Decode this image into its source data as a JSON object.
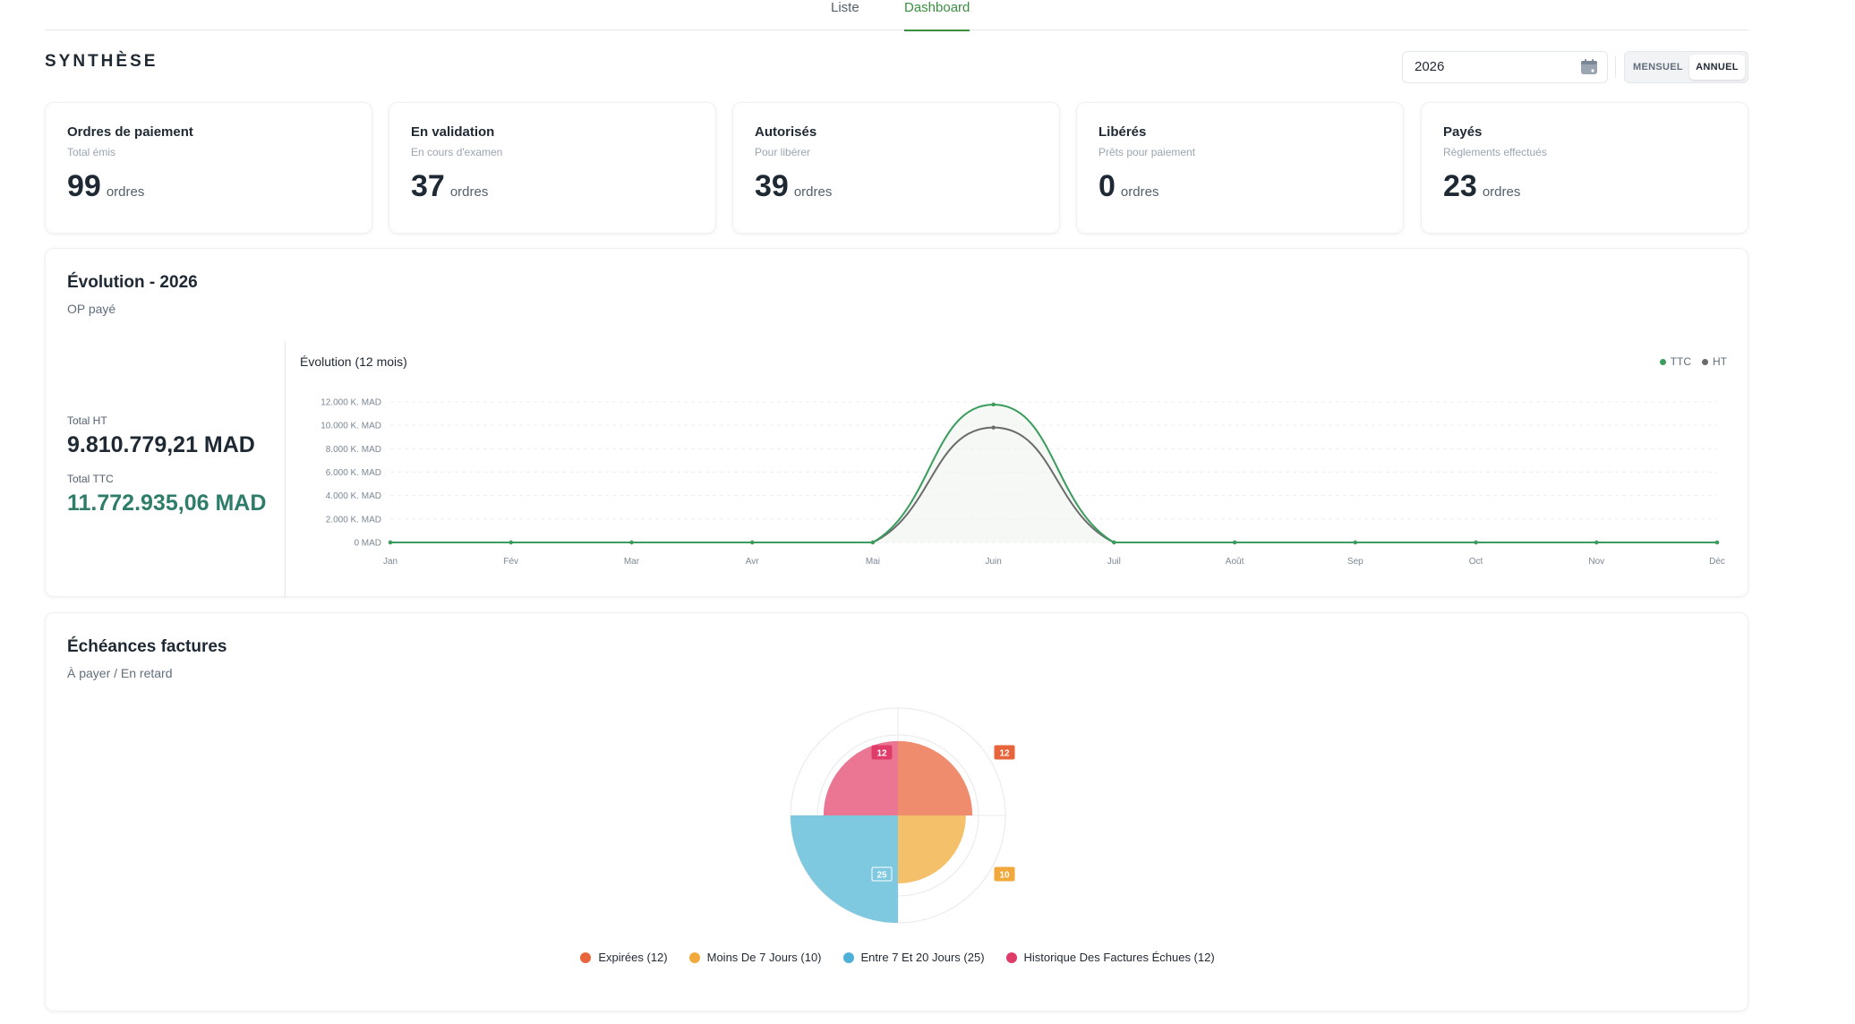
{
  "tabs": [
    {
      "label": "Liste"
    },
    {
      "label": "Dashboard"
    }
  ],
  "header": {
    "title": "SYNTHÈSE",
    "year_value": "2026",
    "period_options": [
      "MENSUEL",
      "ANNUEL"
    ],
    "active_period": "ANNUEL"
  },
  "cards": [
    {
      "title": "Ordres de paiement",
      "sub": "Total émis",
      "value": "99",
      "unit": "ordres"
    },
    {
      "title": "En validation",
      "sub": "En cours d'examen",
      "value": "37",
      "unit": "ordres"
    },
    {
      "title": "Autorisés",
      "sub": "Pour libérer",
      "value": "39",
      "unit": "ordres"
    },
    {
      "title": "Libérés",
      "sub": "Prêts pour paiement",
      "value": "0",
      "unit": "ordres"
    },
    {
      "title": "Payés",
      "sub": "Règlements effectués",
      "value": "23",
      "unit": "ordres"
    }
  ],
  "evolution": {
    "title": "Évolution - 2026",
    "subtitle": "OP payé",
    "total_ht_label": "Total HT",
    "total_ht": "9.810.779,21 MAD",
    "total_ttc_label": "Total TTC",
    "total_ttc": "11.772.935,06 MAD",
    "chart_title": "Évolution (12 mois)"
  },
  "echeances": {
    "title": "Échéances factures",
    "subtitle": "À payer / En retard"
  },
  "chart_data": [
    {
      "type": "line",
      "title": "Évolution (12 mois)",
      "categories": [
        "Jan",
        "Fév",
        "Mar",
        "Avr",
        "Mai",
        "Juin",
        "Juil",
        "Août",
        "Sep",
        "Oct",
        "Nov",
        "Déc"
      ],
      "y_ticks": [
        "0 MAD",
        "2.000 K. MAD",
        "4.000 K. MAD",
        "6.000 K. MAD",
        "8.000 K. MAD",
        "10.000 K. MAD",
        "12.000 K. MAD"
      ],
      "ylim": [
        0,
        12000
      ],
      "grid": true,
      "legend_position": "top-right",
      "series": [
        {
          "name": "TTC",
          "color": "#3a9d5d",
          "values": [
            0,
            0,
            0,
            0,
            0,
            11773,
            0,
            0,
            0,
            0,
            0,
            0
          ]
        },
        {
          "name": "HT",
          "color": "#6b6b6b",
          "values": [
            0,
            0,
            0,
            0,
            0,
            9811,
            0,
            0,
            0,
            0,
            0,
            0
          ]
        }
      ]
    },
    {
      "type": "pie",
      "subtype": "polar-area",
      "legend_position": "bottom",
      "categories": [
        "Expirées (12)",
        "Moins De 7 Jours (10)",
        "Entre 7 Et 20 Jours (25)",
        "Historique Des Factures Échues (12)"
      ],
      "values": [
        12,
        10,
        25,
        12
      ],
      "labels": [
        "12",
        "10",
        "25",
        "12"
      ],
      "colors": [
        "#f08c6e",
        "#f5c06a",
        "#7ec8e0",
        "#ea7693"
      ],
      "legend_colors": [
        "#e8643a",
        "#f2a93b",
        "#4fb0d8",
        "#e03c6a"
      ],
      "label_colors": [
        "#e8643a",
        "#f2a93b",
        "#4fb0d8",
        "#e03c6a"
      ]
    }
  ]
}
